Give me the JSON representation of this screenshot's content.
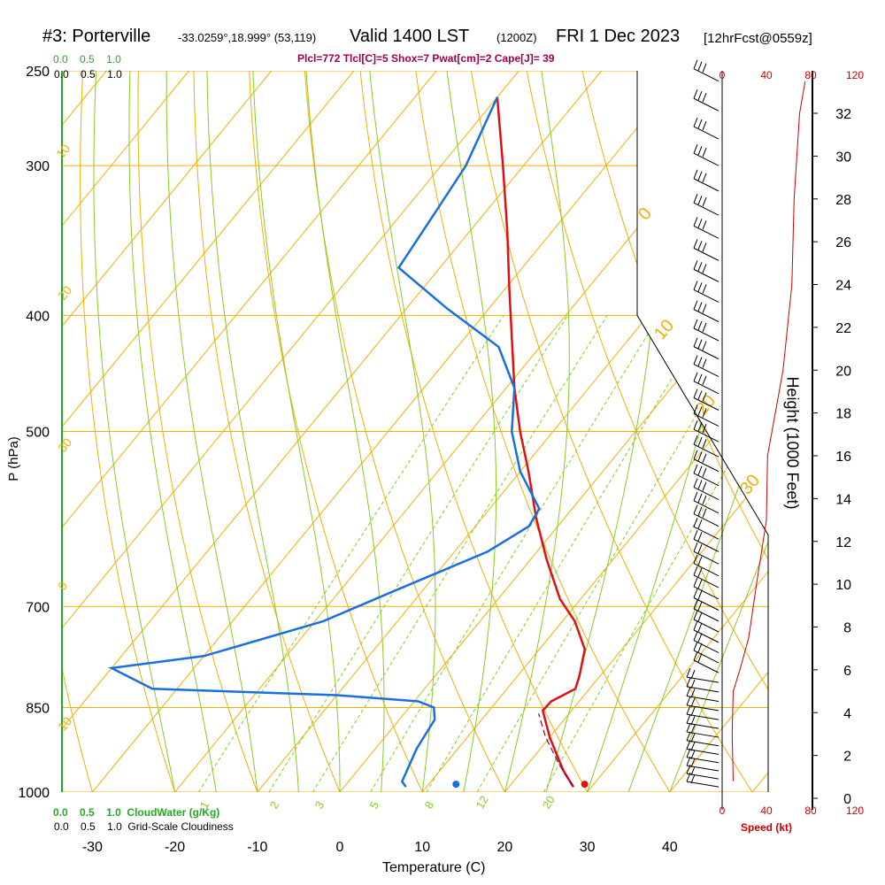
{
  "header": {
    "title_station": "#3: Porterville",
    "title_coords": "-33.0259°,18.999° (53,119)",
    "title_valid": "Valid 1400 LST",
    "title_utc": "(1200Z)",
    "title_date": "FRI 1 Dec 2023",
    "title_run": "[12hrFcst@0559z]",
    "subtitle": "Plcl=772 Tlcl[C]=5 Shox=7 Pwat[cm]=2 Cape[J]= 39"
  },
  "legend": {
    "cloudwater_top": [
      "0.0",
      "0.5",
      "1.0"
    ],
    "cloudiness_top": [
      "0.0",
      "0.5",
      "1.0"
    ],
    "cloudwater_bottom": [
      "0.0",
      "0.5",
      "1.0"
    ],
    "cloudwater_label": "CloudWater (g/Kg)",
    "cloudiness_bottom": [
      "0.0",
      "0.5",
      "1.0"
    ],
    "cloudiness_label": "Grid-Scale Cloudiness"
  },
  "colors": {
    "isotherm": "#f0b000",
    "dry_adiabat": "#f0b000",
    "moist_adiabat": "#88cc22",
    "mixing_ratio": "#88cc22",
    "temperature": "#e01010",
    "dewpoint": "#1a6fe0",
    "parcel": "#800040",
    "cloud": "#22aa22",
    "wind": "#000000",
    "speed": "#cc0000"
  },
  "chart_data": {
    "type": "skew-t",
    "xlabel": "Temperature (C)",
    "ylabel": "P (hPa)",
    "y2label": "Height (1000 Feet)",
    "x_ticks": [
      -30,
      -20,
      -10,
      0,
      10,
      20,
      30,
      40
    ],
    "p_ticks": [
      250,
      300,
      400,
      500,
      700,
      850,
      1000
    ],
    "height_ticks": [
      0,
      2,
      4,
      6,
      8,
      10,
      12,
      14,
      16,
      18,
      20,
      22,
      24,
      26,
      28,
      30,
      32
    ],
    "speed_label": "Speed (kt)",
    "speed_ticks": [
      0,
      40,
      80,
      120
    ],
    "xlim": [
      -35,
      36
    ],
    "plim": [
      1000,
      250
    ],
    "skew_deg_per_log": 38,
    "isotherm_labels": [
      {
        "t": 0,
        "text": "0"
      },
      {
        "t": 10,
        "text": "10"
      },
      {
        "t": 20,
        "text": "20"
      },
      {
        "t": 30,
        "text": "30"
      },
      {
        "t": -10,
        "text": "10"
      },
      {
        "t": -20,
        "text": "20"
      },
      {
        "t": -30,
        "text": "30"
      },
      {
        "t": -40,
        "text": "0"
      },
      {
        "t": -50,
        "text": "10"
      }
    ],
    "mixing_ratio_labels": [
      "1",
      "2",
      "3",
      "5",
      "8",
      "12",
      "20"
    ],
    "mixing_ratios": [
      1,
      2,
      3,
      5,
      8,
      12,
      20
    ],
    "series": [
      {
        "name": "temperature",
        "points": [
          {
            "p": 990,
            "t": 27.8
          },
          {
            "p": 960,
            "t": 25.0
          },
          {
            "p": 900,
            "t": 20.0
          },
          {
            "p": 855,
            "t": 16.5
          },
          {
            "p": 840,
            "t": 16.6
          },
          {
            "p": 820,
            "t": 18.3
          },
          {
            "p": 800,
            "t": 17.5
          },
          {
            "p": 760,
            "t": 15.5
          },
          {
            "p": 720,
            "t": 11.5
          },
          {
            "p": 690,
            "t": 7.5
          },
          {
            "p": 640,
            "t": 2.0
          },
          {
            "p": 590,
            "t": -3.5
          },
          {
            "p": 540,
            "t": -9.0
          },
          {
            "p": 500,
            "t": -14.0
          },
          {
            "p": 460,
            "t": -19.0
          },
          {
            "p": 420,
            "t": -24.0
          },
          {
            "p": 380,
            "t": -29.5
          },
          {
            "p": 340,
            "t": -35.5
          },
          {
            "p": 300,
            "t": -42.5
          },
          {
            "p": 263,
            "t": -50.0
          }
        ]
      },
      {
        "name": "dewpoint",
        "points": [
          {
            "p": 990,
            "t": 7.5
          },
          {
            "p": 980,
            "t": 6.5
          },
          {
            "p": 920,
            "t": 5.0
          },
          {
            "p": 870,
            "t": 4.3
          },
          {
            "p": 850,
            "t": 3.0
          },
          {
            "p": 840,
            "t": 0.5
          },
          {
            "p": 830,
            "t": -10.0
          },
          {
            "p": 820,
            "t": -33.0
          },
          {
            "p": 788,
            "t": -40.0
          },
          {
            "p": 770,
            "t": -30.0
          },
          {
            "p": 720,
            "t": -19.0
          },
          {
            "p": 680,
            "t": -13.5
          },
          {
            "p": 630,
            "t": -6.0
          },
          {
            "p": 600,
            "t": -3.5
          },
          {
            "p": 580,
            "t": -4.0
          },
          {
            "p": 540,
            "t": -10.0
          },
          {
            "p": 500,
            "t": -15.0
          },
          {
            "p": 460,
            "t": -19.0
          },
          {
            "p": 425,
            "t": -25.0
          },
          {
            "p": 395,
            "t": -35.0
          },
          {
            "p": 365,
            "t": -45.0
          },
          {
            "p": 330,
            "t": -46.0
          },
          {
            "p": 300,
            "t": -47.0
          },
          {
            "p": 263,
            "t": -50.0
          }
        ]
      },
      {
        "name": "parcel",
        "points": [
          {
            "p": 990,
            "t": 27.8
          },
          {
            "p": 950,
            "t": 24.0
          },
          {
            "p": 900,
            "t": 19.5
          },
          {
            "p": 860,
            "t": 16.3
          }
        ]
      }
    ],
    "surface_temperature": {
      "p": 985,
      "t": 28.9
    },
    "surface_dewpoint": {
      "p": 985,
      "t": 13.3
    },
    "height_profile_kft": [
      {
        "h": 0.8,
        "speed": 10
      },
      {
        "h": 3.0,
        "speed": 9
      },
      {
        "h": 5.0,
        "speed": 10
      },
      {
        "h": 6.0,
        "speed": 16
      },
      {
        "h": 7.5,
        "speed": 24
      },
      {
        "h": 10.0,
        "speed": 31
      },
      {
        "h": 12.0,
        "speed": 37
      },
      {
        "h": 13.0,
        "speed": 40
      },
      {
        "h": 16.0,
        "speed": 41
      },
      {
        "h": 20.0,
        "speed": 55
      },
      {
        "h": 24.0,
        "speed": 63
      },
      {
        "h": 28.0,
        "speed": 65
      },
      {
        "h": 32.0,
        "speed": 70
      },
      {
        "h": 33.5,
        "speed": 75
      }
    ]
  }
}
